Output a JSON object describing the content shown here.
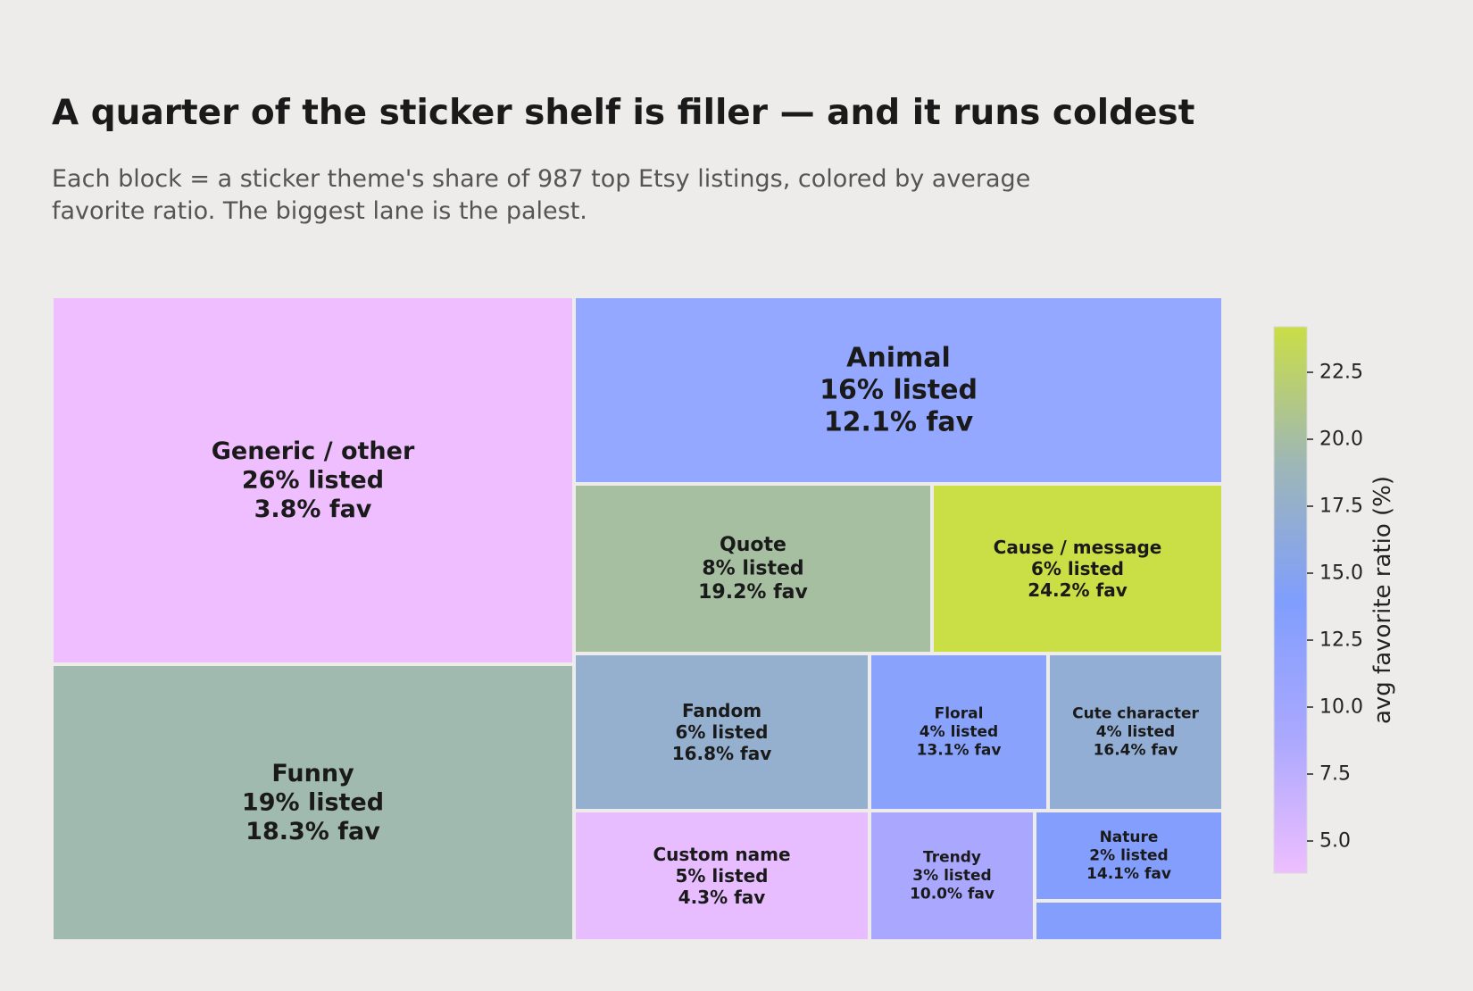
{
  "header": {
    "title": "A quarter of the sticker shelf is filler — and it runs coldest",
    "subtitle_lines": [
      "Each block = a sticker theme's share of 987 top Etsy listings, colored by average",
      "favorite ratio. The biggest lane is the palest."
    ]
  },
  "chart_data": {
    "type": "treemap",
    "title": "A quarter of the sticker shelf is filler — and it runs coldest",
    "subtitle": "Each block = a sticker theme's share of 987 top Etsy listings, colored by average favorite ratio. The biggest lane is the palest.",
    "size_metric": "share of listings (%)",
    "color_metric": "avg favorite ratio (%)",
    "items": [
      {
        "name": "Generic / other",
        "listed_label": "26% listed",
        "fav_label": "3.8% fav",
        "share": 26,
        "fav": 3.8,
        "color": "#eebeff"
      },
      {
        "name": "Funny",
        "listed_label": "19% listed",
        "fav_label": "18.3% fav",
        "share": 19,
        "fav": 18.3,
        "color": "#a1bab0"
      },
      {
        "name": "Animal",
        "listed_label": "16% listed",
        "fav_label": "12.1% fav",
        "share": 16,
        "fav": 12.1,
        "color": "#94a8ff"
      },
      {
        "name": "Quote",
        "listed_label": "8% listed",
        "fav_label": "19.2% fav",
        "share": 8,
        "fav": 19.2,
        "color": "#a7bfa1"
      },
      {
        "name": "Cause / message",
        "listed_label": "6% listed",
        "fav_label": "24.2% fav",
        "share": 6,
        "fav": 24.2,
        "color": "#cade46"
      },
      {
        "name": "Fandom",
        "listed_label": "6% listed",
        "fav_label": "16.8% fav",
        "share": 6,
        "fav": 16.8,
        "color": "#95b0cf"
      },
      {
        "name": "Floral",
        "listed_label": "4% listed",
        "fav_label": "13.1% fav",
        "share": 4,
        "fav": 13.1,
        "color": "#89a3fd"
      },
      {
        "name": "Cute character",
        "listed_label": "4% listed",
        "fav_label": "16.4% fav",
        "share": 4,
        "fav": 16.4,
        "color": "#93aed4"
      },
      {
        "name": "Custom name",
        "listed_label": "5% listed",
        "fav_label": "4.3% fav",
        "share": 5,
        "fav": 4.3,
        "color": "#e7bdff"
      },
      {
        "name": "Trendy",
        "listed_label": "3% listed",
        "fav_label": "10.0% fav",
        "share": 3,
        "fav": 10.0,
        "color": "#aaa8fe"
      },
      {
        "name": "Nature",
        "listed_label": "2% listed",
        "fav_label": "14.1% fav",
        "share": 2,
        "fav": 14.1,
        "color": "#839efd"
      },
      {
        "name": "",
        "listed_label": "",
        "fav_label": "",
        "share": 1,
        "fav": null,
        "color": "#839efd"
      }
    ],
    "colorbar": {
      "label": "avg favorite ratio (%)",
      "range": [
        3.8,
        24.2
      ],
      "ticks": [
        5.0,
        7.5,
        10.0,
        12.5,
        15.0,
        17.5,
        20.0,
        22.5
      ],
      "tick_labels": [
        "5.0",
        "7.5",
        "10.0",
        "12.5",
        "15.0",
        "17.5",
        "20.0",
        "22.5"
      ],
      "stops": [
        "#eebeff",
        "#aaa8fe",
        "#809efd",
        "#9eb7b6",
        "#cade46"
      ]
    }
  }
}
